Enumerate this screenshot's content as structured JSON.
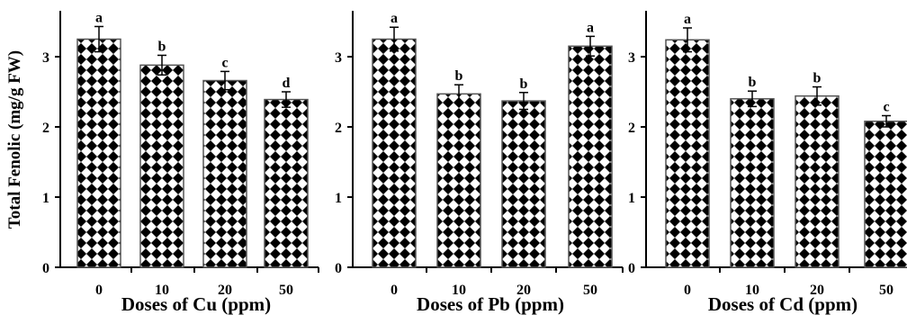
{
  "figure": {
    "ylabel": "Total Fenolic (mg/g FW)"
  },
  "chart_data": [
    {
      "type": "bar",
      "categories": [
        "0",
        "10",
        "20",
        "50"
      ],
      "values": [
        3.25,
        2.88,
        2.66,
        2.39
      ],
      "errors": [
        0.18,
        0.14,
        0.13,
        0.11
      ],
      "significance": [
        "a",
        "b",
        "c",
        "d"
      ],
      "xlabel": "Doses of Cu (ppm)",
      "ylabel": "Total Fenolic (mg/g FW)",
      "ylim": [
        0,
        3.5
      ],
      "yticks": [
        "0",
        "1",
        "2",
        "3"
      ],
      "bar_pattern": "black-white diamond checkerboard",
      "grid": false
    },
    {
      "type": "bar",
      "categories": [
        "0",
        "10",
        "20",
        "50"
      ],
      "values": [
        3.25,
        2.47,
        2.37,
        3.15
      ],
      "errors": [
        0.17,
        0.13,
        0.12,
        0.14
      ],
      "significance": [
        "a",
        "b",
        "b",
        "a"
      ],
      "xlabel": "Doses of Pb (ppm)",
      "ylabel": "",
      "ylim": [
        0,
        3.5
      ],
      "yticks": [
        "0",
        "1",
        "2",
        "3"
      ],
      "bar_pattern": "black-white diamond checkerboard",
      "grid": false
    },
    {
      "type": "bar",
      "categories": [
        "0",
        "10",
        "20",
        "50"
      ],
      "values": [
        3.24,
        2.4,
        2.44,
        2.08
      ],
      "errors": [
        0.17,
        0.11,
        0.13,
        0.08
      ],
      "significance": [
        "a",
        "b",
        "b",
        "c"
      ],
      "xlabel": "Doses of Cd (ppm)",
      "ylabel": "",
      "ylim": [
        0,
        3.5
      ],
      "yticks": [
        "0",
        "1",
        "2",
        "3"
      ],
      "bar_pattern": "black-white diamond checkerboard",
      "grid": false
    }
  ]
}
